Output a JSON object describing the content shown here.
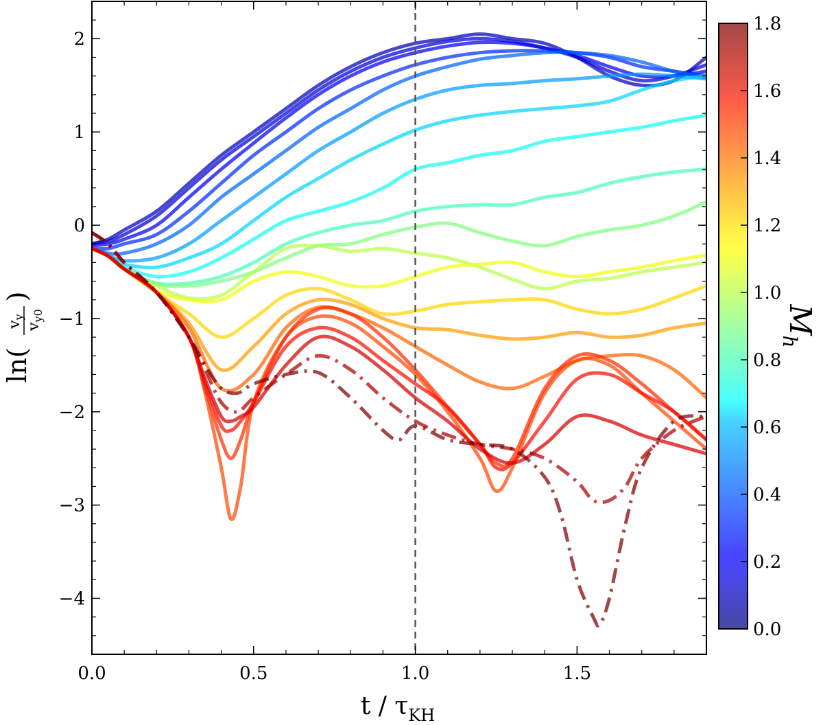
{
  "chart_data": {
    "type": "line",
    "title": "",
    "xlabel": "t / τ_KH",
    "xlabel_main": "t / τ",
    "xlabel_sub": "KH",
    "ylabel": "ln(v_y / v_y0)",
    "ylabel_prefix": "ln(",
    "ylabel_suffix": ")",
    "ylabel_num": "v",
    "ylabel_num_sub": "y",
    "ylabel_den": "v",
    "ylabel_den_sub": "y0",
    "xlim": [
      0.0,
      1.9
    ],
    "ylim": [
      -4.6,
      2.4
    ],
    "xticks": [
      0.0,
      0.5,
      1.0,
      1.5
    ],
    "xtick_labels": [
      "0.0",
      "0.5",
      "1.0",
      "1.5"
    ],
    "yticks": [
      2,
      1,
      0,
      -1,
      -2,
      -3,
      -4
    ],
    "ytick_labels": [
      "2",
      "1",
      "0",
      "−1",
      "−2",
      "−3",
      "−4"
    ],
    "vline": {
      "x": 1.0,
      "style": "dashed",
      "color": "#555555"
    },
    "grid": false,
    "colorbar": {
      "label": "M",
      "label_sub": "h",
      "range": [
        0.0,
        1.8
      ],
      "ticks": [
        0.0,
        0.2,
        0.4,
        0.6,
        0.8,
        1.0,
        1.2,
        1.4,
        1.6,
        1.8
      ],
      "tick_labels": [
        "0.0",
        "0.2",
        "0.4",
        "0.6",
        "0.8",
        "1.0",
        "1.2",
        "1.4",
        "1.6",
        "1.8"
      ],
      "colormap": "jet"
    },
    "series": [
      {
        "mach": 0.1,
        "style": "solid",
        "x": [
          0,
          0.05,
          0.1,
          0.2,
          0.3,
          0.4,
          0.5,
          0.6,
          0.7,
          0.8,
          0.9,
          1.0,
          1.1,
          1.2,
          1.3,
          1.4,
          1.5,
          1.6,
          1.7,
          1.8,
          1.9
        ],
        "y": [
          -0.2,
          -0.15,
          -0.05,
          0.15,
          0.45,
          0.75,
          1.0,
          1.25,
          1.5,
          1.7,
          1.85,
          1.95,
          2.0,
          2.05,
          2.0,
          1.95,
          1.8,
          1.6,
          1.5,
          1.55,
          1.8
        ]
      },
      {
        "mach": 0.15,
        "style": "solid",
        "x": [
          0,
          0.05,
          0.1,
          0.2,
          0.3,
          0.4,
          0.5,
          0.6,
          0.7,
          0.8,
          0.9,
          1.0,
          1.1,
          1.2,
          1.3,
          1.4,
          1.5,
          1.6,
          1.7,
          1.8,
          1.9
        ],
        "y": [
          -0.2,
          -0.17,
          -0.1,
          0.1,
          0.4,
          0.7,
          0.95,
          1.2,
          1.45,
          1.65,
          1.8,
          1.9,
          1.97,
          2.0,
          1.97,
          1.9,
          1.8,
          1.65,
          1.55,
          1.6,
          1.72
        ]
      },
      {
        "mach": 0.2,
        "style": "solid",
        "x": [
          0,
          0.05,
          0.1,
          0.2,
          0.3,
          0.4,
          0.5,
          0.6,
          0.7,
          0.8,
          0.9,
          1.0,
          1.1,
          1.2,
          1.3,
          1.4,
          1.5,
          1.6,
          1.7,
          1.8,
          1.9
        ],
        "y": [
          -0.22,
          -0.2,
          -0.15,
          0.0,
          0.3,
          0.6,
          0.88,
          1.15,
          1.4,
          1.6,
          1.75,
          1.85,
          1.92,
          1.96,
          1.95,
          1.9,
          1.82,
          1.7,
          1.6,
          1.6,
          1.65
        ]
      },
      {
        "mach": 0.3,
        "style": "solid",
        "x": [
          0,
          0.05,
          0.1,
          0.2,
          0.3,
          0.4,
          0.5,
          0.6,
          0.7,
          0.8,
          0.9,
          1.0,
          1.1,
          1.2,
          1.3,
          1.4,
          1.5,
          1.6,
          1.7,
          1.8,
          1.9
        ],
        "y": [
          -0.25,
          -0.25,
          -0.2,
          -0.1,
          0.15,
          0.45,
          0.75,
          1.0,
          1.25,
          1.45,
          1.6,
          1.72,
          1.8,
          1.85,
          1.87,
          1.87,
          1.85,
          1.8,
          1.7,
          1.65,
          1.6
        ]
      },
      {
        "mach": 0.4,
        "style": "solid",
        "x": [
          0,
          0.05,
          0.1,
          0.2,
          0.3,
          0.4,
          0.5,
          0.6,
          0.7,
          0.8,
          0.9,
          1.0,
          1.1,
          1.2,
          1.3,
          1.4,
          1.5,
          1.6,
          1.7,
          1.8,
          1.9
        ],
        "y": [
          -0.25,
          -0.3,
          -0.3,
          -0.2,
          0.0,
          0.3,
          0.55,
          0.8,
          1.05,
          1.25,
          1.45,
          1.6,
          1.7,
          1.78,
          1.82,
          1.85,
          1.85,
          1.82,
          1.75,
          1.65,
          1.58
        ]
      },
      {
        "mach": 0.5,
        "style": "solid",
        "x": [
          0,
          0.05,
          0.1,
          0.2,
          0.3,
          0.4,
          0.5,
          0.6,
          0.7,
          0.8,
          0.9,
          1.0,
          1.1,
          1.2,
          1.3,
          1.4,
          1.5,
          1.6,
          1.7,
          1.8,
          1.9
        ],
        "y": [
          -0.25,
          -0.32,
          -0.38,
          -0.35,
          -0.2,
          0.05,
          0.3,
          0.55,
          0.8,
          1.0,
          1.2,
          1.35,
          1.45,
          1.5,
          1.52,
          1.55,
          1.57,
          1.6,
          1.62,
          1.6,
          1.57
        ]
      },
      {
        "mach": 0.6,
        "style": "solid",
        "x": [
          0,
          0.05,
          0.1,
          0.2,
          0.3,
          0.4,
          0.5,
          0.6,
          0.7,
          0.8,
          0.9,
          1.0,
          1.1,
          1.2,
          1.3,
          1.4,
          1.5,
          1.6,
          1.7,
          1.8,
          1.9
        ],
        "y": [
          -0.25,
          -0.33,
          -0.42,
          -0.45,
          -0.35,
          -0.2,
          0.05,
          0.3,
          0.5,
          0.7,
          0.87,
          1.02,
          1.12,
          1.18,
          1.22,
          1.25,
          1.28,
          1.33,
          1.45,
          1.55,
          1.6
        ]
      },
      {
        "mach": 0.7,
        "style": "solid",
        "x": [
          0,
          0.05,
          0.1,
          0.2,
          0.3,
          0.4,
          0.5,
          0.6,
          0.7,
          0.8,
          0.9,
          1.0,
          1.1,
          1.2,
          1.3,
          1.4,
          1.5,
          1.6,
          1.7,
          1.8,
          1.9
        ],
        "y": [
          -0.25,
          -0.33,
          -0.45,
          -0.55,
          -0.5,
          -0.35,
          -0.15,
          0.05,
          0.15,
          0.25,
          0.4,
          0.6,
          0.67,
          0.75,
          0.8,
          0.9,
          0.95,
          1.0,
          1.05,
          1.12,
          1.18
        ]
      },
      {
        "mach": 0.8,
        "style": "solid",
        "x": [
          0,
          0.05,
          0.1,
          0.2,
          0.3,
          0.4,
          0.5,
          0.6,
          0.7,
          0.8,
          0.9,
          1.0,
          1.1,
          1.2,
          1.3,
          1.4,
          1.5,
          1.6,
          1.7,
          1.8,
          1.9
        ],
        "y": [
          -0.25,
          -0.33,
          -0.47,
          -0.62,
          -0.62,
          -0.55,
          -0.4,
          -0.2,
          -0.08,
          0.0,
          0.05,
          0.15,
          0.2,
          0.22,
          0.22,
          0.3,
          0.35,
          0.45,
          0.52,
          0.57,
          0.6
        ]
      },
      {
        "mach": 0.9,
        "style": "solid",
        "x": [
          0,
          0.05,
          0.1,
          0.2,
          0.3,
          0.4,
          0.5,
          0.6,
          0.7,
          0.8,
          0.9,
          1.0,
          1.1,
          1.2,
          1.3,
          1.4,
          1.5,
          1.6,
          1.7,
          1.8,
          1.9
        ],
        "y": [
          -0.25,
          -0.33,
          -0.47,
          -0.63,
          -0.65,
          -0.6,
          -0.5,
          -0.35,
          -0.22,
          -0.2,
          -0.1,
          -0.02,
          0.02,
          -0.08,
          -0.17,
          -0.22,
          -0.12,
          -0.05,
          0.0,
          0.1,
          0.25
        ]
      },
      {
        "mach": 1.0,
        "style": "solid",
        "x": [
          0,
          0.05,
          0.1,
          0.2,
          0.3,
          0.4,
          0.5,
          0.6,
          0.7,
          0.8,
          0.9,
          1.0,
          1.1,
          1.2,
          1.3,
          1.4,
          1.5,
          1.6,
          1.7,
          1.8,
          1.9
        ],
        "y": [
          -0.25,
          -0.33,
          -0.47,
          -0.65,
          -0.78,
          -0.75,
          -0.5,
          -0.25,
          -0.22,
          -0.28,
          -0.25,
          -0.3,
          -0.35,
          -0.45,
          -0.58,
          -0.68,
          -0.6,
          -0.57,
          -0.5,
          -0.45,
          -0.4
        ]
      },
      {
        "mach": 1.1,
        "style": "solid",
        "x": [
          0,
          0.05,
          0.1,
          0.2,
          0.3,
          0.4,
          0.5,
          0.6,
          0.7,
          0.8,
          0.9,
          1.0,
          1.1,
          1.2,
          1.3,
          1.4,
          1.5,
          1.6,
          1.7,
          1.8,
          1.9
        ],
        "y": [
          -0.25,
          -0.33,
          -0.47,
          -0.7,
          -0.8,
          -0.8,
          -0.6,
          -0.5,
          -0.55,
          -0.65,
          -0.65,
          -0.55,
          -0.45,
          -0.42,
          -0.4,
          -0.5,
          -0.55,
          -0.5,
          -0.45,
          -0.38,
          -0.32
        ]
      },
      {
        "mach": 1.2,
        "style": "solid",
        "x": [
          0,
          0.05,
          0.1,
          0.2,
          0.3,
          0.4,
          0.5,
          0.6,
          0.7,
          0.8,
          0.9,
          1.0,
          1.1,
          1.2,
          1.3,
          1.4,
          1.5,
          1.6,
          1.7,
          1.8,
          1.9
        ],
        "y": [
          -0.25,
          -0.33,
          -0.47,
          -0.72,
          -0.95,
          -1.2,
          -1.0,
          -0.75,
          -0.68,
          -0.8,
          -0.95,
          -0.92,
          -0.85,
          -0.82,
          -0.8,
          -0.8,
          -0.9,
          -0.95,
          -0.9,
          -0.78,
          -0.65
        ]
      },
      {
        "mach": 1.3,
        "style": "solid",
        "x": [
          0,
          0.05,
          0.1,
          0.2,
          0.3,
          0.4,
          0.5,
          0.6,
          0.7,
          0.8,
          0.9,
          1.0,
          1.1,
          1.2,
          1.3,
          1.4,
          1.5,
          1.6,
          1.7,
          1.8,
          1.9
        ],
        "y": [
          -0.25,
          -0.33,
          -0.47,
          -0.72,
          -1.05,
          -1.55,
          -1.3,
          -0.95,
          -0.8,
          -0.85,
          -1.0,
          -1.1,
          -1.12,
          -1.18,
          -1.22,
          -1.2,
          -1.15,
          -1.2,
          -1.18,
          -1.1,
          -1.05
        ]
      },
      {
        "mach": 1.4,
        "style": "solid",
        "x": [
          0,
          0.05,
          0.1,
          0.2,
          0.3,
          0.4,
          0.5,
          0.6,
          0.7,
          0.8,
          0.9,
          1.0,
          1.1,
          1.2,
          1.3,
          1.4,
          1.5,
          1.6,
          1.7,
          1.8,
          1.9
        ],
        "y": [
          -0.25,
          -0.33,
          -0.47,
          -0.72,
          -1.1,
          -1.75,
          -1.6,
          -1.1,
          -0.88,
          -0.95,
          -1.1,
          -1.3,
          -1.5,
          -1.68,
          -1.75,
          -1.62,
          -1.45,
          -1.4,
          -1.4,
          -1.55,
          -1.85
        ]
      },
      {
        "mach": 1.45,
        "style": "solid",
        "x": [
          0,
          0.05,
          0.1,
          0.2,
          0.3,
          0.35,
          0.4,
          0.43,
          0.46,
          0.5,
          0.6,
          0.7,
          0.8,
          0.9,
          1.0,
          1.1,
          1.2,
          1.25,
          1.3,
          1.4,
          1.5,
          1.6,
          1.7,
          1.8,
          1.9
        ],
        "y": [
          -0.25,
          -0.33,
          -0.47,
          -0.72,
          -1.2,
          -1.8,
          -2.6,
          -3.15,
          -2.8,
          -1.9,
          -1.2,
          -0.98,
          -1.05,
          -1.3,
          -1.6,
          -2.0,
          -2.5,
          -2.85,
          -2.6,
          -1.8,
          -1.45,
          -1.5,
          -1.8,
          -2.1,
          -2.4
        ]
      },
      {
        "mach": 1.5,
        "style": "solid",
        "x": [
          0,
          0.05,
          0.1,
          0.2,
          0.3,
          0.35,
          0.4,
          0.43,
          0.46,
          0.5,
          0.6,
          0.7,
          0.8,
          0.9,
          1.0,
          1.1,
          1.2,
          1.25,
          1.3,
          1.4,
          1.5,
          1.6,
          1.7,
          1.8,
          1.9
        ],
        "y": [
          -0.25,
          -0.33,
          -0.47,
          -0.72,
          -1.2,
          -1.75,
          -2.3,
          -2.5,
          -2.3,
          -1.9,
          -1.2,
          -0.9,
          -0.95,
          -1.2,
          -1.55,
          -1.95,
          -2.35,
          -2.55,
          -2.5,
          -1.75,
          -1.4,
          -1.45,
          -1.7,
          -2.0,
          -2.3
        ]
      },
      {
        "mach": 1.55,
        "style": "solid",
        "x": [
          0,
          0.05,
          0.1,
          0.2,
          0.3,
          0.35,
          0.4,
          0.43,
          0.46,
          0.5,
          0.6,
          0.7,
          0.8,
          0.9,
          1.0,
          1.1,
          1.2,
          1.25,
          1.3,
          1.4,
          1.5,
          1.6,
          1.7,
          1.8,
          1.9
        ],
        "y": [
          -0.25,
          -0.33,
          -0.47,
          -0.72,
          -1.2,
          -1.7,
          -2.15,
          -2.2,
          -2.1,
          -1.9,
          -1.3,
          -1.1,
          -1.2,
          -1.45,
          -1.7,
          -1.95,
          -2.35,
          -2.6,
          -2.55,
          -2.1,
          -1.65,
          -1.6,
          -1.8,
          -2.0,
          -2.3
        ]
      },
      {
        "mach": 1.65,
        "style": "solid",
        "x": [
          0,
          0.05,
          0.1,
          0.2,
          0.3,
          0.35,
          0.4,
          0.43,
          0.46,
          0.5,
          0.6,
          0.7,
          0.8,
          0.9,
          1.0,
          1.1,
          1.2,
          1.3,
          1.4,
          1.5,
          1.6,
          1.7,
          1.8,
          1.9
        ],
        "y": [
          -0.25,
          -0.33,
          -0.47,
          -0.72,
          -1.2,
          -1.65,
          -2.05,
          -2.1,
          -2.05,
          -1.95,
          -1.5,
          -1.2,
          -1.3,
          -1.55,
          -1.85,
          -2.1,
          -2.4,
          -2.55,
          -2.35,
          -2.05,
          -2.1,
          -2.25,
          -2.35,
          -2.45
        ]
      },
      {
        "mach": 1.72,
        "style": "dashdot",
        "x": [
          0,
          0.05,
          0.1,
          0.2,
          0.3,
          0.35,
          0.4,
          0.45,
          0.5,
          0.6,
          0.7,
          0.8,
          0.9,
          1.0,
          1.1,
          1.2,
          1.3,
          1.4,
          1.5,
          1.55,
          1.6,
          1.65,
          1.7,
          1.8,
          1.9
        ],
        "y": [
          -0.08,
          -0.2,
          -0.4,
          -0.72,
          -1.2,
          -1.55,
          -1.9,
          -2.0,
          -1.85,
          -1.6,
          -1.4,
          -1.55,
          -1.85,
          -2.1,
          -2.25,
          -2.35,
          -2.4,
          -2.5,
          -2.75,
          -2.95,
          -2.95,
          -2.8,
          -2.5,
          -2.2,
          -2.05
        ]
      },
      {
        "mach": 1.8,
        "style": "dashdot",
        "x": [
          0,
          0.05,
          0.1,
          0.2,
          0.3,
          0.35,
          0.4,
          0.45,
          0.5,
          0.6,
          0.7,
          0.8,
          0.9,
          0.95,
          1.0,
          1.1,
          1.2,
          1.3,
          1.4,
          1.45,
          1.5,
          1.55,
          1.57,
          1.6,
          1.65,
          1.7,
          1.8,
          1.9
        ],
        "y": [
          -0.08,
          -0.2,
          -0.4,
          -0.72,
          -1.2,
          -1.5,
          -1.75,
          -1.8,
          -1.7,
          -1.6,
          -1.58,
          -1.85,
          -2.2,
          -2.3,
          -2.15,
          -2.3,
          -2.35,
          -2.4,
          -2.7,
          -3.1,
          -3.8,
          -4.2,
          -4.28,
          -4.0,
          -3.2,
          -2.6,
          -2.1,
          -2.05
        ]
      }
    ]
  }
}
